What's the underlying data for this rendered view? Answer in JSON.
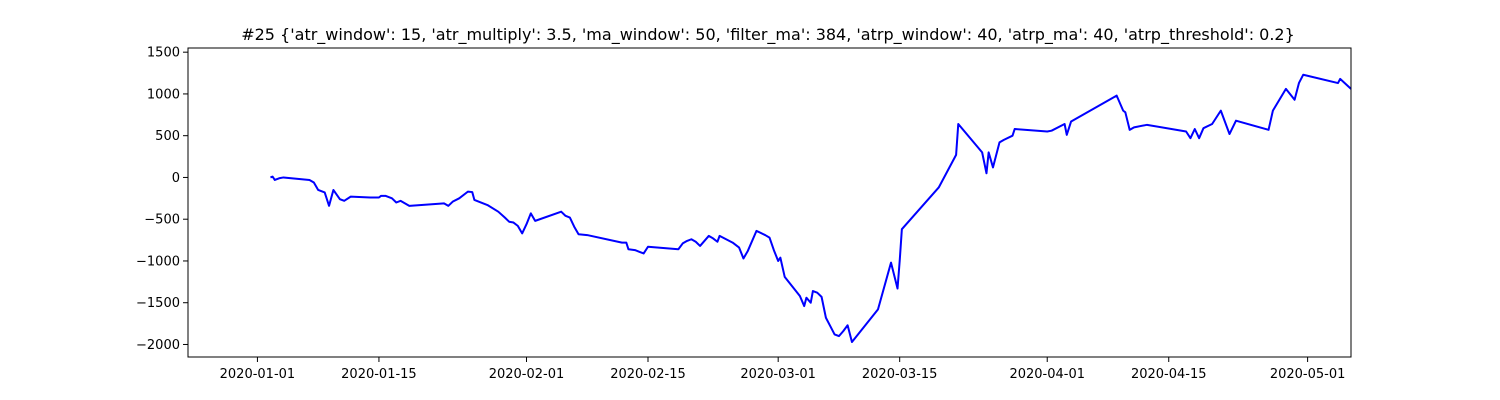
{
  "chart_data": {
    "type": "line",
    "title": "#25 {'atr_window': 15, 'atr_multiply': 3.5, 'ma_window': 50, 'filter_ma': 384, 'atrp_window': 40, 'atrp_ma': 40, 'atrp_threshold': 0.2}",
    "xlabel": "",
    "ylabel": "",
    "xlim": [
      "2019-12-24",
      "2020-05-06"
    ],
    "ylim": [
      -2150,
      1550
    ],
    "x_ticks": [
      "2020-01-01",
      "2020-01-15",
      "2020-02-01",
      "2020-02-15",
      "2020-03-01",
      "2020-03-15",
      "2020-04-01",
      "2020-04-15",
      "2020-05-01"
    ],
    "y_ticks": [
      1500,
      1000,
      500,
      0,
      -500,
      -1000,
      -1500,
      -2000
    ],
    "grid": false,
    "series": [
      {
        "name": "",
        "color": "#0000ff",
        "points": [
          [
            "2020-01-02T12:00",
            0
          ],
          [
            "2020-01-02T18:00",
            10
          ],
          [
            "2020-01-03T00:00",
            -30
          ],
          [
            "2020-01-03T12:00",
            -10
          ],
          [
            "2020-01-04T00:00",
            0
          ],
          [
            "2020-01-07T00:00",
            -30
          ],
          [
            "2020-01-07T12:00",
            -60
          ],
          [
            "2020-01-08T00:00",
            -150
          ],
          [
            "2020-01-08T18:00",
            -180
          ],
          [
            "2020-01-09T06:00",
            -340
          ],
          [
            "2020-01-09T18:00",
            -150
          ],
          [
            "2020-01-10T12:00",
            -260
          ],
          [
            "2020-01-11T00:00",
            -280
          ],
          [
            "2020-01-11T18:00",
            -230
          ],
          [
            "2020-01-14T00:00",
            -240
          ],
          [
            "2020-01-15T00:00",
            -240
          ],
          [
            "2020-01-15T06:00",
            -220
          ],
          [
            "2020-01-15T18:00",
            -220
          ],
          [
            "2020-01-16T12:00",
            -250
          ],
          [
            "2020-01-17T00:00",
            -300
          ],
          [
            "2020-01-17T12:00",
            -280
          ],
          [
            "2020-01-18T12:00",
            -340
          ],
          [
            "2020-01-22T12:00",
            -310
          ],
          [
            "2020-01-23T00:00",
            -340
          ],
          [
            "2020-01-23T12:00",
            -290
          ],
          [
            "2020-01-24T06:00",
            -250
          ],
          [
            "2020-01-25T06:00",
            -170
          ],
          [
            "2020-01-25T18:00",
            -175
          ],
          [
            "2020-01-26T00:00",
            -270
          ],
          [
            "2020-01-27T12:00",
            -330
          ],
          [
            "2020-01-28T18:00",
            -410
          ],
          [
            "2020-01-29T12:00",
            -480
          ],
          [
            "2020-01-30T00:00",
            -530
          ],
          [
            "2020-01-30T12:00",
            -540
          ],
          [
            "2020-01-31T00:00",
            -580
          ],
          [
            "2020-01-31T12:00",
            -670
          ],
          [
            "2020-02-01T00:00",
            -560
          ],
          [
            "2020-02-01T12:00",
            -430
          ],
          [
            "2020-02-02T00:00",
            -520
          ],
          [
            "2020-02-05T00:00",
            -410
          ],
          [
            "2020-02-05T12:00",
            -460
          ],
          [
            "2020-02-06T00:00",
            -480
          ],
          [
            "2020-02-06T12:00",
            -590
          ],
          [
            "2020-02-07T00:00",
            -680
          ],
          [
            "2020-02-08T00:00",
            -690
          ],
          [
            "2020-02-12T00:00",
            -780
          ],
          [
            "2020-02-12T12:00",
            -780
          ],
          [
            "2020-02-12T18:00",
            -860
          ],
          [
            "2020-02-13T12:00",
            -870
          ],
          [
            "2020-02-14T00:00",
            -890
          ],
          [
            "2020-02-14T12:00",
            -910
          ],
          [
            "2020-02-15T00:00",
            -830
          ],
          [
            "2020-02-18T12:00",
            -860
          ],
          [
            "2020-02-19T00:00",
            -790
          ],
          [
            "2020-02-19T12:00",
            -760
          ],
          [
            "2020-02-20T00:00",
            -740
          ],
          [
            "2020-02-20T12:00",
            -770
          ],
          [
            "2020-02-21T00:00",
            -820
          ],
          [
            "2020-02-21T12:00",
            -760
          ],
          [
            "2020-02-22T00:00",
            -700
          ],
          [
            "2020-02-22T12:00",
            -730
          ],
          [
            "2020-02-23T00:00",
            -770
          ],
          [
            "2020-02-23T06:00",
            -700
          ],
          [
            "2020-02-24T18:00",
            -780
          ],
          [
            "2020-02-25T12:00",
            -840
          ],
          [
            "2020-02-26T00:00",
            -970
          ],
          [
            "2020-02-26T12:00",
            -880
          ],
          [
            "2020-02-27T12:00",
            -640
          ],
          [
            "2020-02-28T12:00",
            -690
          ],
          [
            "2020-02-29T00:00",
            -720
          ],
          [
            "2020-02-29T12:00",
            -870
          ],
          [
            "2020-03-01T00:00",
            -1000
          ],
          [
            "2020-03-01T06:00",
            -960
          ],
          [
            "2020-03-01T18:00",
            -1190
          ],
          [
            "2020-03-03T12:00",
            -1420
          ],
          [
            "2020-03-04T00:00",
            -1540
          ],
          [
            "2020-03-04T06:00",
            -1440
          ],
          [
            "2020-03-04T18:00",
            -1500
          ],
          [
            "2020-03-05T00:00",
            -1360
          ],
          [
            "2020-03-05T12:00",
            -1380
          ],
          [
            "2020-03-06T00:00",
            -1430
          ],
          [
            "2020-03-06T12:00",
            -1680
          ],
          [
            "2020-03-07T00:00",
            -1780
          ],
          [
            "2020-03-07T12:00",
            -1880
          ],
          [
            "2020-03-08T00:00",
            -1900
          ],
          [
            "2020-03-08T12:00",
            -1840
          ],
          [
            "2020-03-09T00:00",
            -1770
          ],
          [
            "2020-03-09T12:00",
            -1970
          ],
          [
            "2020-03-12T12:00",
            -1580
          ],
          [
            "2020-03-14T00:00",
            -1020
          ],
          [
            "2020-03-14T18:00",
            -1330
          ],
          [
            "2020-03-15T00:00",
            -1000
          ],
          [
            "2020-03-15T06:00",
            -620
          ],
          [
            "2020-03-19T12:00",
            -120
          ],
          [
            "2020-03-21T12:00",
            270
          ],
          [
            "2020-03-21T18:00",
            640
          ],
          [
            "2020-03-24T12:00",
            300
          ],
          [
            "2020-03-25T00:00",
            50
          ],
          [
            "2020-03-25T06:00",
            300
          ],
          [
            "2020-03-25T18:00",
            120
          ],
          [
            "2020-03-26T12:00",
            420
          ],
          [
            "2020-03-27T00:00",
            450
          ],
          [
            "2020-03-28T00:00",
            500
          ],
          [
            "2020-03-28T06:00",
            580
          ],
          [
            "2020-04-01T00:00",
            550
          ],
          [
            "2020-04-01T12:00",
            560
          ],
          [
            "2020-04-03T00:00",
            640
          ],
          [
            "2020-04-03T06:00",
            510
          ],
          [
            "2020-04-03T18:00",
            670
          ],
          [
            "2020-04-09T00:00",
            980
          ],
          [
            "2020-04-09T18:00",
            800
          ],
          [
            "2020-04-10T00:00",
            780
          ],
          [
            "2020-04-10T12:00",
            570
          ],
          [
            "2020-04-11T00:00",
            600
          ],
          [
            "2020-04-12T12:00",
            630
          ],
          [
            "2020-04-17T00:00",
            550
          ],
          [
            "2020-04-17T12:00",
            470
          ],
          [
            "2020-04-18T00:00",
            580
          ],
          [
            "2020-04-18T12:00",
            470
          ],
          [
            "2020-04-19T00:00",
            590
          ],
          [
            "2020-04-20T00:00",
            640
          ],
          [
            "2020-04-21T00:00",
            800
          ],
          [
            "2020-04-22T00:00",
            520
          ],
          [
            "2020-04-22T18:00",
            680
          ],
          [
            "2020-04-26T12:00",
            570
          ],
          [
            "2020-04-27T00:00",
            800
          ],
          [
            "2020-04-28T12:00",
            1060
          ],
          [
            "2020-04-29T12:00",
            930
          ],
          [
            "2020-04-30T00:00",
            1130
          ],
          [
            "2020-04-30T12:00",
            1230
          ],
          [
            "2020-05-04T12:00",
            1130
          ],
          [
            "2020-05-04T18:00",
            1180
          ],
          [
            "2020-05-06T00:00",
            1060
          ]
        ]
      }
    ]
  }
}
